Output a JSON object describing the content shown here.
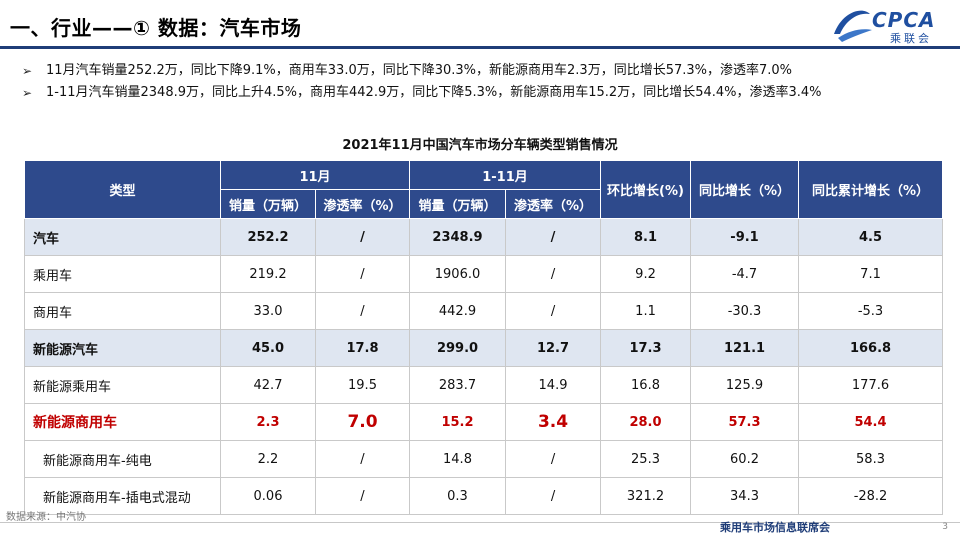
{
  "header": {
    "title": "一、行业——① 数据：汽车市场",
    "logo_en": "CPCA",
    "logo_cn": "乘联会",
    "logo_sub": "CPCA"
  },
  "bullets": [
    "11月汽车销量252.2万，同比下降9.1%，商用车33.0万，同比下降30.3%，新能源商用车2.3万，同比增长57.3%，渗透率7.0%",
    "1-11月汽车销量2348.9万，同比上升4.5%，商用车442.9万，同比下降5.3%，新能源商用车15.2万，同比增长54.4%，渗透率3.4%"
  ],
  "bullet_glyph": "➢",
  "table": {
    "title": "2021年11月中国汽车市场分车辆类型销售情况",
    "headers": {
      "type": "类型",
      "group_nov": "11月",
      "group_ytd": "1-11月",
      "sales": "销量（万辆）",
      "penetration": "渗透率（%）",
      "mom": "环比增长(%)",
      "yoy": "同比增长（%）",
      "yoy_cum": "同比累计增长（%）"
    },
    "rows": [
      {
        "type": "汽车",
        "nov_sales": "252.2",
        "nov_pen": "/",
        "ytd_sales": "2348.9",
        "ytd_pen": "/",
        "mom": "8.1",
        "yoy": "-9.1",
        "yoy_cum": "4.5"
      },
      {
        "type": "乘用车",
        "nov_sales": "219.2",
        "nov_pen": "/",
        "ytd_sales": "1906.0",
        "ytd_pen": "/",
        "mom": "9.2",
        "yoy": "-4.7",
        "yoy_cum": "7.1"
      },
      {
        "type": "商用车",
        "nov_sales": "33.0",
        "nov_pen": "/",
        "ytd_sales": "442.9",
        "ytd_pen": "/",
        "mom": "1.1",
        "yoy": "-30.3",
        "yoy_cum": "-5.3"
      },
      {
        "type": "新能源汽车",
        "nov_sales": "45.0",
        "nov_pen": "17.8",
        "ytd_sales": "299.0",
        "ytd_pen": "12.7",
        "mom": "17.3",
        "yoy": "121.1",
        "yoy_cum": "166.8"
      },
      {
        "type": "新能源乘用车",
        "nov_sales": "42.7",
        "nov_pen": "19.5",
        "ytd_sales": "283.7",
        "ytd_pen": "14.9",
        "mom": "16.8",
        "yoy": "125.9",
        "yoy_cum": "177.6"
      },
      {
        "type": "新能源商用车",
        "nov_sales": "2.3",
        "nov_pen": "7.0",
        "ytd_sales": "15.2",
        "ytd_pen": "3.4",
        "mom": "28.0",
        "yoy": "57.3",
        "yoy_cum": "54.4"
      },
      {
        "type": "新能源商用车-纯电",
        "nov_sales": "2.2",
        "nov_pen": "/",
        "ytd_sales": "14.8",
        "ytd_pen": "/",
        "mom": "25.3",
        "yoy": "60.2",
        "yoy_cum": "58.3"
      },
      {
        "type": "新能源商用车-插电式混动",
        "nov_sales": "0.06",
        "nov_pen": "/",
        "ytd_sales": "0.3",
        "ytd_pen": "/",
        "mom": "321.2",
        "yoy": "34.3",
        "yoy_cum": "-28.2"
      }
    ]
  },
  "footer": {
    "source": "数据来源：中汽协",
    "org": "乘用车市场信息联席会",
    "page": "3"
  },
  "colors": {
    "header_bg": "#2e4a8c",
    "highlight_row": "#dfe6f1",
    "accent_red": "#c00000",
    "title_rule": "#1f3d78"
  }
}
